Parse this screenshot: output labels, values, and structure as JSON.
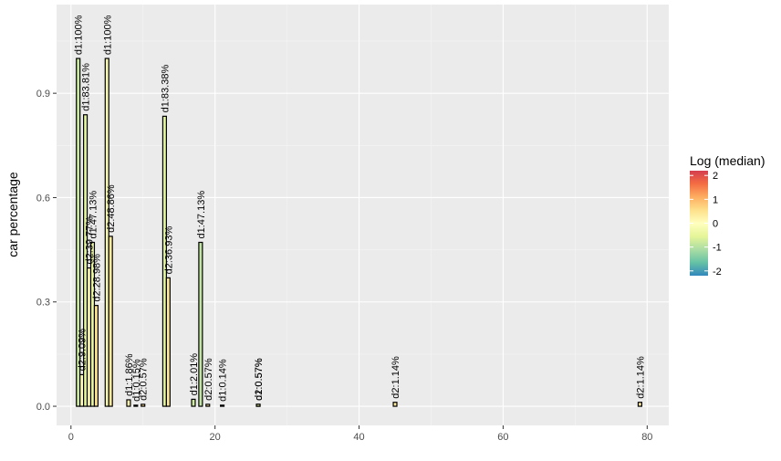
{
  "chart_data": {
    "type": "bar",
    "title": "",
    "xlabel": "",
    "ylabel": "car percentage",
    "xlim": [
      -2,
      83
    ],
    "ylim": [
      -0.055,
      1.155
    ],
    "x_ticks": [
      0,
      20,
      40,
      60,
      80
    ],
    "y_ticks": [
      0.0,
      0.3,
      0.6,
      0.9
    ],
    "x_tick_labels": [
      "0",
      "20",
      "40",
      "60",
      "80"
    ],
    "y_tick_labels": [
      "0.0",
      "0.3",
      "0.6",
      "0.9"
    ],
    "grid": true,
    "legend": {
      "title": "Log (median)",
      "position": "right",
      "ticks": [
        2,
        1,
        0,
        -1,
        -2
      ],
      "tick_labels": [
        "2",
        "1",
        "0",
        "-1",
        "-2"
      ],
      "range": [
        -2.2,
        2.2
      ],
      "colors": [
        "#3288bd",
        "#66c2a5",
        "#abdda4",
        "#e6f598",
        "#ffffbf",
        "#fee08b",
        "#fdae61",
        "#f46d43",
        "#d53e4f"
      ]
    },
    "bars": [
      {
        "x": 1,
        "value": 1.0,
        "label": "d1:100%",
        "log_median": -0.8
      },
      {
        "x": 1.5,
        "value": 0.0909,
        "label": "d2:9.09%",
        "log_median": 0.1
      },
      {
        "x": 2,
        "value": 0.8381,
        "label": "d1:83.81%",
        "log_median": -0.6
      },
      {
        "x": 2.5,
        "value": 0.3977,
        "label": "d2:39.77%",
        "log_median": 0.1
      },
      {
        "x": 3,
        "value": 0.4713,
        "label": "d1:47.13%",
        "log_median": -0.4
      },
      {
        "x": 3.5,
        "value": 0.2898,
        "label": "d2:28.98%",
        "log_median": 0.5
      },
      {
        "x": 5,
        "value": 1.0,
        "label": "d1:100%",
        "log_median": -0.2
      },
      {
        "x": 5.5,
        "value": 0.4886,
        "label": "d2:48.86%",
        "log_median": 0.4
      },
      {
        "x": 8,
        "value": 0.0186,
        "label": "d1:1.86%",
        "log_median": 0.2
      },
      {
        "x": 9,
        "value": 0.0015,
        "label": "d1:0.15%",
        "log_median": 0.6
      },
      {
        "x": 10,
        "value": 0.0057,
        "label": "d2:0.57%",
        "log_median": 0.5
      },
      {
        "x": 13,
        "value": 0.8338,
        "label": "d1:83.38%",
        "log_median": -0.6
      },
      {
        "x": 13.5,
        "value": 0.3693,
        "label": "d2:36.93%",
        "log_median": 0.4
      },
      {
        "x": 17,
        "value": 0.0201,
        "label": "d1:2.01%",
        "log_median": -0.8
      },
      {
        "x": 18,
        "value": 0.4713,
        "label": "d1:47.13%",
        "log_median": -0.9
      },
      {
        "x": 19,
        "value": 0.0057,
        "label": "d2:0.57%",
        "log_median": 0.3
      },
      {
        "x": 21,
        "value": 0.0014,
        "label": "d1:0.14%",
        "log_median": -0.3
      },
      {
        "x": 26,
        "value": 0.0057,
        "label": "d2:0.57%",
        "log_median": 0.2
      },
      {
        "x": 26,
        "value": 0.0057,
        "label": "d1:0.57%",
        "log_median": -0.5
      },
      {
        "x": 45,
        "value": 0.0114,
        "label": "d2:1.14%",
        "log_median": 0.4
      },
      {
        "x": 79,
        "value": 0.0114,
        "label": "d2:1.14%",
        "log_median": 0.4
      }
    ]
  }
}
